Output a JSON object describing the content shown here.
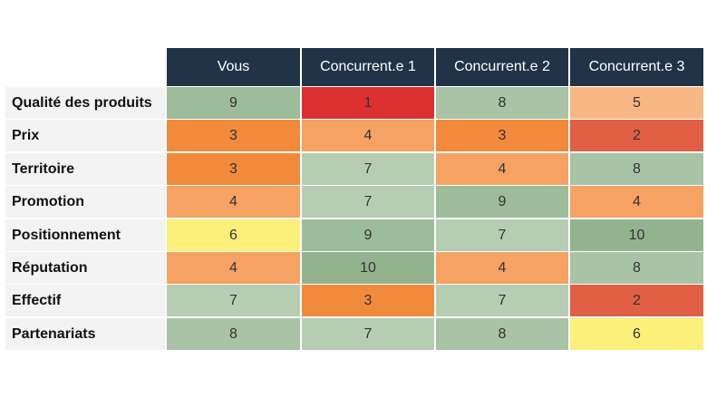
{
  "chart_data": {
    "type": "heatmap",
    "columns": [
      "Vous",
      "Concurrent.e 1",
      "Concurrent.e 2",
      "Concurrent.e 3"
    ],
    "rows": [
      {
        "label": "Qualité des produits",
        "values": [
          9,
          1,
          8,
          5
        ]
      },
      {
        "label": "Prix",
        "values": [
          3,
          4,
          3,
          2
        ]
      },
      {
        "label": "Territoire",
        "values": [
          3,
          7,
          4,
          8
        ]
      },
      {
        "label": "Promotion",
        "values": [
          4,
          7,
          9,
          4
        ]
      },
      {
        "label": "Positionnement",
        "values": [
          6,
          9,
          7,
          10
        ]
      },
      {
        "label": "Réputation",
        "values": [
          4,
          10,
          4,
          8
        ]
      },
      {
        "label": "Effectif",
        "values": [
          7,
          3,
          7,
          2
        ]
      },
      {
        "label": "Partenariats",
        "values": [
          8,
          7,
          8,
          6
        ]
      }
    ],
    "value_colors": {
      "1": "#dc3030",
      "2": "#e05f45",
      "3": "#f28a3c",
      "4": "#f5a263",
      "5": "#f8b883",
      "6": "#faf07a",
      "7": "#b7cdb3",
      "8": "#a8c3a5",
      "9": "#9dbc99",
      "10": "#93b38f"
    },
    "header_color": "#213447"
  }
}
